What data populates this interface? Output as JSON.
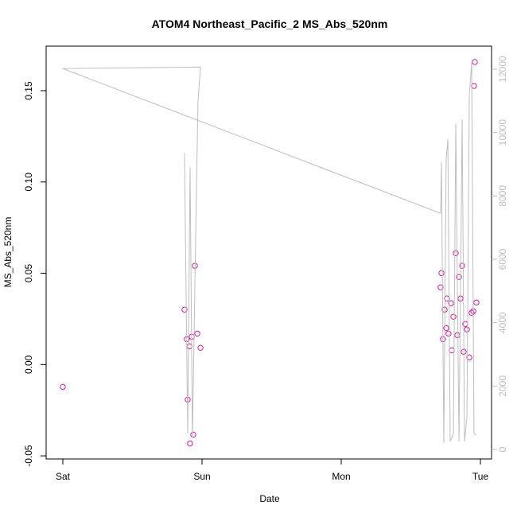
{
  "chart_data": {
    "type": "scatter",
    "title": "ATOM4 Northeast_Pacific_2 MS_Abs_520nm",
    "x_label": "Date",
    "y_label": "MS_Abs_520nm",
    "xlim": [
      -0.12,
      3.08
    ],
    "xticks": [
      {
        "value": 0,
        "label": "Sat"
      },
      {
        "value": 1,
        "label": "Sun"
      },
      {
        "value": 2,
        "label": "Mon"
      },
      {
        "value": 3,
        "label": "Tue"
      }
    ],
    "ylim": [
      -0.0517,
      0.1744
    ],
    "yticks": [
      -0.05,
      {
        "value": 0,
        "label": "0.00"
      },
      0.05,
      {
        "value": 0.1,
        "label": "0.10"
      },
      0.15
    ],
    "y2lim": [
      -301,
      12728
    ],
    "y2ticks": [
      0,
      2000,
      4000,
      6000,
      8000,
      10000,
      12000
    ],
    "y2_color": "#bebebe",
    "series": [
      {
        "type": "scatter",
        "color": "#e0179b",
        "x": [
          0,
          0.874,
          0.891,
          0.897,
          0.909,
          0.914,
          0.926,
          0.937,
          0.949,
          0.966,
          0.989,
          2.714,
          2.72,
          2.731,
          2.743,
          2.754,
          2.76,
          2.771,
          2.789,
          2.794,
          2.806,
          2.823,
          2.834,
          2.846,
          2.857,
          2.869,
          2.88,
          2.891,
          2.903,
          2.92,
          2.937,
          2.949,
          2.954,
          2.96,
          2.971
        ],
        "values": [
          -0.0122,
          0.0301,
          0.0139,
          -0.0192,
          0.01,
          -0.0432,
          0.0153,
          -0.0384,
          0.0541,
          0.017,
          0.0092,
          0.0423,
          0.0501,
          0.0139,
          0.0301,
          0.02,
          0.0362,
          0.017,
          0.0336,
          0.0078,
          0.0262,
          0.061,
          0.0161,
          0.048,
          0.0362,
          0.0541,
          0.007,
          0.0222,
          0.0192,
          0.0039,
          0.0283,
          0.0292,
          0.1526,
          0.1657,
          0.034
        ]
      },
      {
        "type": "line",
        "axis": "y2",
        "color": "#bebebe",
        "x": [
          0.874,
          0.897,
          0.914,
          0.931,
          0.954,
          0.971,
          0.989,
          0,
          2.714,
          2.72,
          2.737,
          2.754,
          2.766,
          2.783,
          2.806,
          2.823,
          2.846,
          2.869,
          2.886,
          2.903,
          2.92,
          2.937,
          2.954,
          2.971
        ],
        "values": [
          9359,
          502,
          8907,
          376,
          6649,
          10965,
          12069,
          12019,
          7452,
          9083,
          201,
          9158,
          9785,
          251,
          502,
          10287,
          251,
          10412,
          251,
          1004,
          11165,
          12219,
          502,
          452
        ]
      }
    ]
  }
}
